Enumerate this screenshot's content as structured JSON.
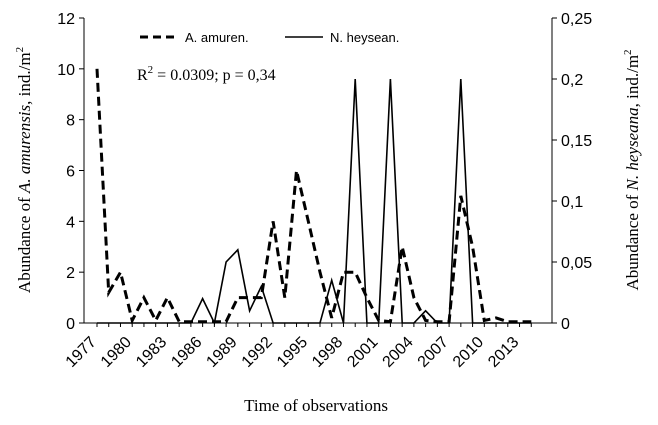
{
  "chart_data": {
    "type": "line",
    "xlabel": "Time of observations",
    "ylabel_left": {
      "pre": "Abundance of ",
      "italic": "A. amurensis",
      "post": ", ind./m",
      "sup": "2"
    },
    "ylabel_right": {
      "pre": "Abundance of ",
      "italic": "N. heyseana",
      "post": ", ind./m",
      "sup": "2"
    },
    "x_range": [
      1977,
      2015
    ],
    "x_tick_labels": [
      "1977",
      "1980",
      "1983",
      "1986",
      "1989",
      "1992",
      "1995",
      "1998",
      "2001",
      "2004",
      "2007",
      "2010",
      "2013"
    ],
    "x_tick_values": [
      1977,
      1980,
      1983,
      1986,
      1989,
      1992,
      1995,
      1998,
      2001,
      2004,
      2007,
      2010,
      2013
    ],
    "y_left": {
      "range": [
        0,
        12
      ],
      "ticks": [
        0,
        2,
        4,
        6,
        8,
        10,
        12
      ],
      "tick_labels": [
        "0",
        "2",
        "4",
        "6",
        "8",
        "10",
        "12"
      ]
    },
    "y_right": {
      "range": [
        0,
        0.25
      ],
      "ticks": [
        0,
        0.05,
        0.1,
        0.15,
        0.2,
        0.25
      ],
      "tick_labels": [
        "0",
        "0,05",
        "0,1",
        "0,15",
        "0,2",
        "0,25"
      ]
    },
    "annotation": {
      "r_pre": "R",
      "r_sup": "2",
      "r_post": " = 0.0309;  p = 0,34"
    },
    "legend_position": "top",
    "series": [
      {
        "name": "A. amuren.",
        "axis": "left",
        "style": "dashed",
        "x": [
          1977,
          1978,
          1979,
          1980,
          1981,
          1982,
          1983,
          1984,
          1985,
          1986,
          1987,
          1988,
          1989,
          1990,
          1991,
          1992,
          1993,
          1994,
          1995,
          1996,
          1997,
          1998,
          1999,
          2000,
          2001,
          2002,
          2003,
          2004,
          2005,
          2006,
          2007,
          2008,
          2009,
          2010,
          2011,
          2012,
          2013,
          2014
        ],
        "y": [
          10,
          1.2,
          2,
          0.1,
          1,
          0.1,
          1,
          0.05,
          0.05,
          0.05,
          0.05,
          0.05,
          1,
          1,
          1,
          4,
          1,
          6,
          4,
          2,
          0.2,
          2,
          2,
          1,
          0.1,
          0.05,
          3,
          1,
          0.1,
          0.05,
          0.05,
          5,
          3,
          0.1,
          0.2,
          0.05,
          0.05,
          0.05
        ]
      },
      {
        "name": "N. heysean.",
        "axis": "right",
        "style": "solid",
        "x": [
          1977,
          1978,
          1979,
          1980,
          1981,
          1982,
          1983,
          1984,
          1985,
          1986,
          1987,
          1988,
          1989,
          1990,
          1991,
          1992,
          1993,
          1994,
          1995,
          1996,
          1997,
          1998,
          1999,
          2000,
          2001,
          2002,
          2003,
          2004,
          2005,
          2006,
          2007,
          2008,
          2009,
          2010,
          2011,
          2012,
          2013,
          2014
        ],
        "y": [
          0,
          0,
          0,
          0,
          0,
          0,
          0,
          0,
          0,
          0.02,
          0,
          0.05,
          0.06,
          0.01,
          0.03,
          0,
          0,
          0,
          0,
          0,
          0.035,
          0,
          0.2,
          0,
          0,
          0.2,
          0,
          0,
          0.01,
          0,
          0,
          0.2,
          0,
          0,
          0,
          0,
          0,
          0
        ]
      }
    ]
  }
}
